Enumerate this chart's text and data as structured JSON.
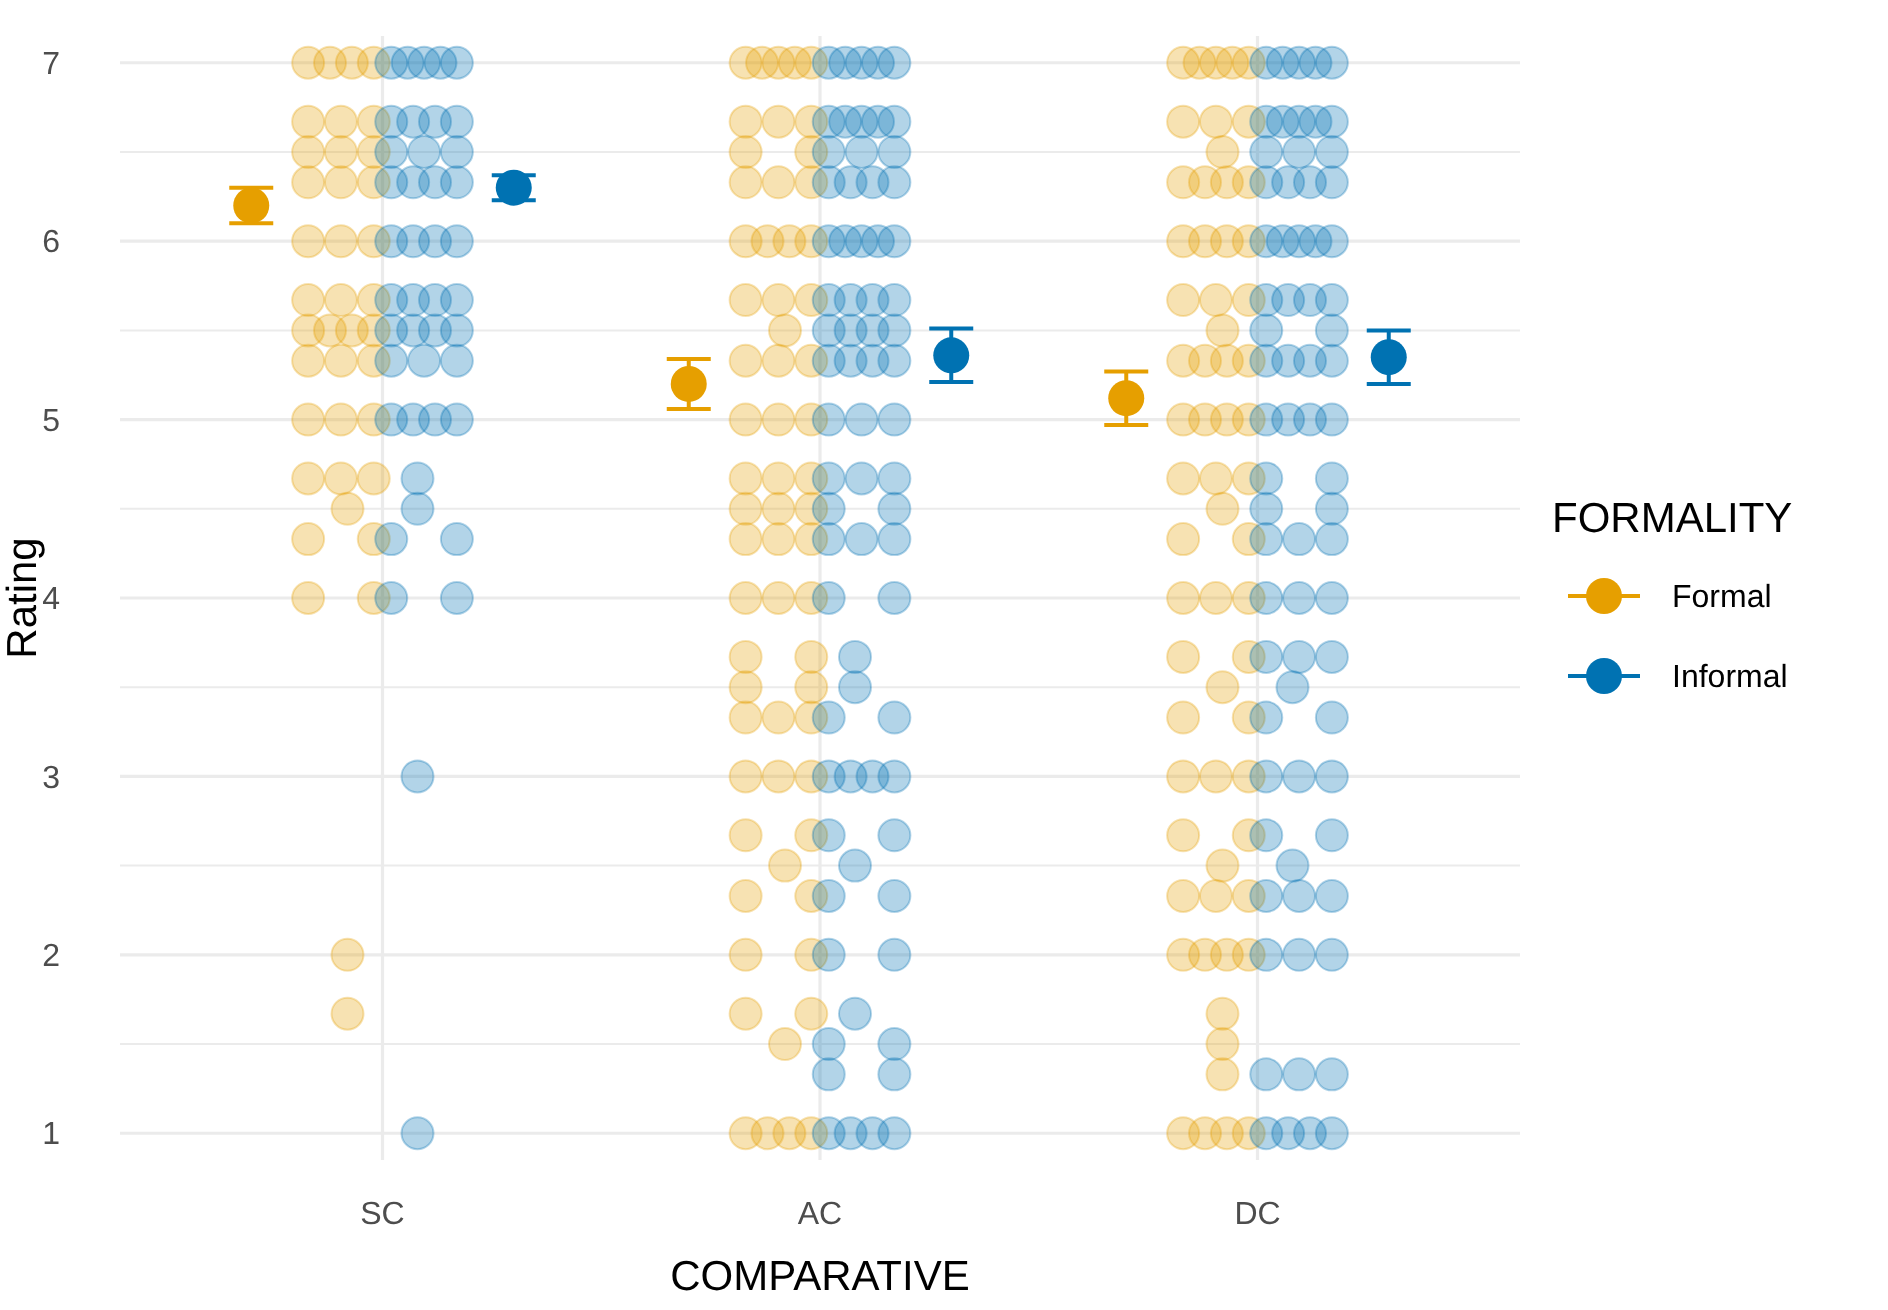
{
  "chart_data": {
    "type": "scatter",
    "xlabel": "COMPARATIVE",
    "ylabel": "Rating",
    "legend_title": "FORMALITY",
    "legend": "right",
    "grid": true,
    "marker": "circle",
    "categories": [
      "SC",
      "AC",
      "DC"
    ],
    "ylim": [
      0.85,
      7.15
    ],
    "yticks": [
      1,
      {
        "value": 1.5,
        "label": null
      },
      2,
      {
        "value": 2.5,
        "label": null
      },
      3,
      {
        "value": 3.5,
        "label": null
      },
      4,
      {
        "value": 4.5,
        "label": null
      },
      5,
      {
        "value": 5.5,
        "label": null
      },
      6,
      {
        "value": 6.5,
        "label": null
      },
      7
    ],
    "series": [
      {
        "color": "#e69f00",
        "x": [
          "SC",
          "SC",
          "SC",
          "SC",
          "SC",
          "SC",
          "SC",
          "SC",
          "SC",
          "SC",
          "SC",
          "SC",
          "SC",
          "SC",
          "SC",
          "SC",
          "SC",
          "SC",
          "SC",
          "SC",
          "SC",
          "SC",
          "SC",
          "SC",
          "SC",
          "SC",
          "SC",
          "SC",
          "SC",
          "SC",
          "SC",
          "SC",
          "SC",
          "SC",
          "SC",
          "SC",
          "SC",
          "SC",
          "SC",
          "AC",
          "AC",
          "AC",
          "AC",
          "AC",
          "AC",
          "AC",
          "AC",
          "AC",
          "AC",
          "AC",
          "AC",
          "AC",
          "AC",
          "AC",
          "AC",
          "AC",
          "AC",
          "AC",
          "AC",
          "AC",
          "AC",
          "AC",
          "AC",
          "AC",
          "AC",
          "AC",
          "AC",
          "AC",
          "AC",
          "AC",
          "AC",
          "AC",
          "AC",
          "AC",
          "AC",
          "AC",
          "AC",
          "AC",
          "AC",
          "AC",
          "AC",
          "AC",
          "AC",
          "AC",
          "AC",
          "AC",
          "AC",
          "AC",
          "AC",
          "AC",
          "AC",
          "AC",
          "AC",
          "AC",
          "AC",
          "AC",
          "AC",
          "AC",
          "AC",
          "AC",
          "AC",
          "AC",
          "DC",
          "DC",
          "DC",
          "DC",
          "DC",
          "DC",
          "DC",
          "DC",
          "DC",
          "DC",
          "DC",
          "DC",
          "DC",
          "DC",
          "DC",
          "DC",
          "DC",
          "DC",
          "DC",
          "DC",
          "DC",
          "DC",
          "DC",
          "DC",
          "DC",
          "DC",
          "DC",
          "DC",
          "DC",
          "DC",
          "DC",
          "DC",
          "DC",
          "DC",
          "DC",
          "DC",
          "DC",
          "DC",
          "DC",
          "DC",
          "DC",
          "DC",
          "DC",
          "DC",
          "DC",
          "DC",
          "DC",
          "DC",
          "DC",
          "DC",
          "DC",
          "DC",
          "DC",
          "DC",
          "DC",
          "DC",
          "DC",
          "DC",
          "DC",
          "DC",
          "DC",
          "DC",
          "DC"
        ],
        "values": [
          7,
          7,
          7,
          7,
          6.67,
          6.67,
          6.67,
          6.5,
          6.5,
          6.5,
          6.33,
          6.33,
          6.33,
          6,
          6,
          6,
          5.67,
          5.67,
          5.67,
          5.5,
          5.5,
          5.5,
          5.5,
          5.33,
          5.33,
          5.33,
          5,
          5,
          5,
          4.67,
          4.67,
          4.67,
          4.5,
          4.33,
          4.33,
          4,
          4,
          2,
          1.67,
          7,
          7,
          7,
          7,
          7,
          6.67,
          6.67,
          6.67,
          6.5,
          6.5,
          6.33,
          6.33,
          6.33,
          6,
          6,
          6,
          6,
          5.67,
          5.67,
          5.67,
          5.5,
          5.33,
          5.33,
          5.33,
          5,
          5,
          5,
          4.67,
          4.67,
          4.67,
          4.5,
          4.5,
          4.5,
          4.33,
          4.33,
          4.33,
          4,
          4,
          4,
          3.67,
          3.67,
          3.5,
          3.5,
          3.33,
          3.33,
          3.33,
          3,
          3,
          3,
          2.67,
          2.67,
          2.5,
          2.33,
          2.33,
          2,
          2,
          1.67,
          1.67,
          1.5,
          1,
          1,
          1,
          1,
          7,
          7,
          7,
          7,
          7,
          6.67,
          6.67,
          6.67,
          6.5,
          6.33,
          6.33,
          6.33,
          6.33,
          6,
          6,
          6,
          6,
          5.67,
          5.67,
          5.67,
          5.5,
          5.33,
          5.33,
          5.33,
          5.33,
          5,
          5,
          5,
          5,
          4.67,
          4.67,
          4.67,
          4.5,
          4.33,
          4.33,
          4,
          4,
          4,
          3.67,
          3.67,
          3.5,
          3.33,
          3.33,
          3,
          3,
          3,
          2.67,
          2.67,
          2.5,
          2.33,
          2.33,
          2.33,
          2,
          2,
          2,
          2,
          1.67,
          1.5,
          1.33,
          1,
          1,
          1,
          1
        ]
      },
      {
        "color": "#0072b2",
        "x": [
          "SC",
          "SC",
          "SC",
          "SC",
          "SC",
          "SC",
          "SC",
          "SC",
          "SC",
          "SC",
          "SC",
          "SC",
          "SC",
          "SC",
          "SC",
          "SC",
          "SC",
          "SC",
          "SC",
          "SC",
          "SC",
          "SC",
          "SC",
          "SC",
          "SC",
          "SC",
          "SC",
          "SC",
          "SC",
          "SC",
          "SC",
          "SC",
          "SC",
          "SC",
          "SC",
          "SC",
          "SC",
          "SC",
          "SC",
          "SC",
          "SC",
          "SC",
          "SC",
          "AC",
          "AC",
          "AC",
          "AC",
          "AC",
          "AC",
          "AC",
          "AC",
          "AC",
          "AC",
          "AC",
          "AC",
          "AC",
          "AC",
          "AC",
          "AC",
          "AC",
          "AC",
          "AC",
          "AC",
          "AC",
          "AC",
          "AC",
          "AC",
          "AC",
          "AC",
          "AC",
          "AC",
          "AC",
          "AC",
          "AC",
          "AC",
          "AC",
          "AC",
          "AC",
          "AC",
          "AC",
          "AC",
          "AC",
          "AC",
          "AC",
          "AC",
          "AC",
          "AC",
          "AC",
          "AC",
          "AC",
          "AC",
          "AC",
          "AC",
          "AC",
          "AC",
          "AC",
          "AC",
          "AC",
          "AC",
          "AC",
          "AC",
          "AC",
          "AC",
          "AC",
          "AC",
          "AC",
          "AC",
          "AC",
          "AC",
          "AC",
          "AC",
          "AC",
          "AC",
          "AC",
          "DC",
          "DC",
          "DC",
          "DC",
          "DC",
          "DC",
          "DC",
          "DC",
          "DC",
          "DC",
          "DC",
          "DC",
          "DC",
          "DC",
          "DC",
          "DC",
          "DC",
          "DC",
          "DC",
          "DC",
          "DC",
          "DC",
          "DC",
          "DC",
          "DC",
          "DC",
          "DC",
          "DC",
          "DC",
          "DC",
          "DC",
          "DC",
          "DC",
          "DC",
          "DC",
          "DC",
          "DC",
          "DC",
          "DC",
          "DC",
          "DC",
          "DC",
          "DC",
          "DC",
          "DC",
          "DC",
          "DC",
          "DC",
          "DC",
          "DC",
          "DC",
          "DC",
          "DC",
          "DC",
          "DC",
          "DC",
          "DC",
          "DC",
          "DC",
          "DC",
          "DC",
          "DC",
          "DC",
          "DC",
          "DC",
          "DC",
          "DC",
          "DC",
          "DC",
          "DC",
          "DC"
        ],
        "values": [
          7,
          7,
          7,
          7,
          7,
          6.67,
          6.67,
          6.67,
          6.67,
          6.5,
          6.5,
          6.5,
          6.33,
          6.33,
          6.33,
          6.33,
          6,
          6,
          6,
          6,
          5.67,
          5.67,
          5.67,
          5.67,
          5.5,
          5.5,
          5.5,
          5.5,
          5.33,
          5.33,
          5.33,
          5,
          5,
          5,
          5,
          4.67,
          4.5,
          4.33,
          4.33,
          4,
          4,
          3,
          1,
          7,
          7,
          7,
          7,
          7,
          6.67,
          6.67,
          6.67,
          6.67,
          6.67,
          6.5,
          6.5,
          6.5,
          6.33,
          6.33,
          6.33,
          6.33,
          6,
          6,
          6,
          6,
          6,
          5.67,
          5.67,
          5.67,
          5.67,
          5.5,
          5.5,
          5.5,
          5.5,
          5.33,
          5.33,
          5.33,
          5.33,
          5,
          5,
          5,
          4.67,
          4.67,
          4.67,
          4.5,
          4.5,
          4.33,
          4.33,
          4.33,
          4,
          4,
          3.67,
          3.5,
          3.33,
          3.33,
          3,
          3,
          3,
          3,
          2.67,
          2.67,
          2.5,
          2.33,
          2.33,
          2,
          2,
          1.67,
          1.5,
          1.5,
          1.33,
          1.33,
          1,
          1,
          1,
          1,
          7,
          7,
          7,
          7,
          7,
          6.67,
          6.67,
          6.67,
          6.67,
          6.67,
          6.5,
          6.5,
          6.5,
          6.33,
          6.33,
          6.33,
          6.33,
          6,
          6,
          6,
          6,
          6,
          5.67,
          5.67,
          5.67,
          5.67,
          5.5,
          5.5,
          5.33,
          5.33,
          5.33,
          5.33,
          5,
          5,
          5,
          5,
          4.67,
          4.67,
          4.5,
          4.5,
          4.33,
          4.33,
          4.33,
          4,
          4,
          4,
          3.67,
          3.67,
          3.67,
          3.5,
          3.33,
          3.33,
          3,
          3,
          3,
          2.67,
          2.67,
          2.5,
          2.33,
          2.33,
          2.33,
          2,
          2,
          2,
          1.33,
          1.33,
          1.33,
          1,
          1,
          1,
          1
        ]
      },
      {
        "name": "Formal",
        "color": "#e69f00",
        "x": [
          "SC",
          "AC",
          "DC"
        ],
        "values": [
          6.2,
          5.2,
          5.12
        ],
        "errors": [
          0.1,
          0.14,
          0.15
        ]
      },
      {
        "name": "Informal",
        "color": "#0072b2",
        "x": [
          "SC",
          "AC",
          "DC"
        ],
        "values": [
          6.3,
          5.36,
          5.35
        ],
        "errors": [
          0.07,
          0.15,
          0.15
        ]
      }
    ]
  }
}
